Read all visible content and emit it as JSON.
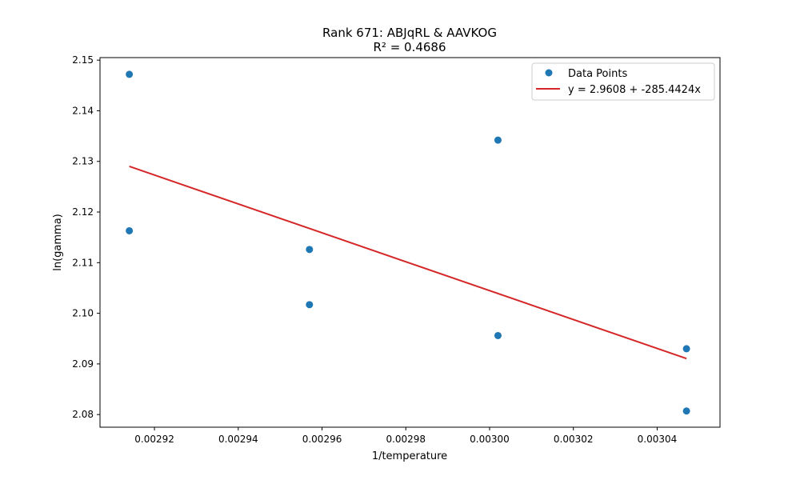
{
  "chart_data": {
    "type": "scatter",
    "title": "Rank 671: ABJqRL & AAVKOG",
    "subtitle": "R² = 0.4686",
    "xlabel": "1/temperature",
    "ylabel": "ln(gamma)",
    "xlim": [
      0.002907,
      0.003055
    ],
    "ylim": [
      2.0775,
      2.1505
    ],
    "x_ticks": [
      0.00292,
      0.00294,
      0.00296,
      0.00298,
      0.003,
      0.00302,
      0.00304
    ],
    "x_tick_labels": [
      "0.00292",
      "0.00294",
      "0.00296",
      "0.00298",
      "0.00300",
      "0.00302",
      "0.00304"
    ],
    "y_ticks": [
      2.08,
      2.09,
      2.1,
      2.11,
      2.12,
      2.13,
      2.14,
      2.15
    ],
    "y_tick_labels": [
      "2.08",
      "2.09",
      "2.10",
      "2.11",
      "2.12",
      "2.13",
      "2.14",
      "2.15"
    ],
    "grid": false,
    "legend_position": "top-right",
    "series": [
      {
        "name": "Data Points",
        "kind": "scatter",
        "color": "#1f77b4",
        "x": [
          0.002914,
          0.002914,
          0.002957,
          0.002957,
          0.003002,
          0.003002,
          0.003047,
          0.003047
        ],
        "y": [
          2.1472,
          2.1163,
          2.1126,
          2.1017,
          2.1342,
          2.0956,
          2.093,
          2.0807
        ]
      },
      {
        "name": "y = 2.9608 + -285.4424x",
        "kind": "line",
        "color": "#d62728",
        "intercept": 2.9608,
        "slope": -285.4424,
        "x_range": [
          0.002914,
          0.003047
        ]
      }
    ]
  }
}
